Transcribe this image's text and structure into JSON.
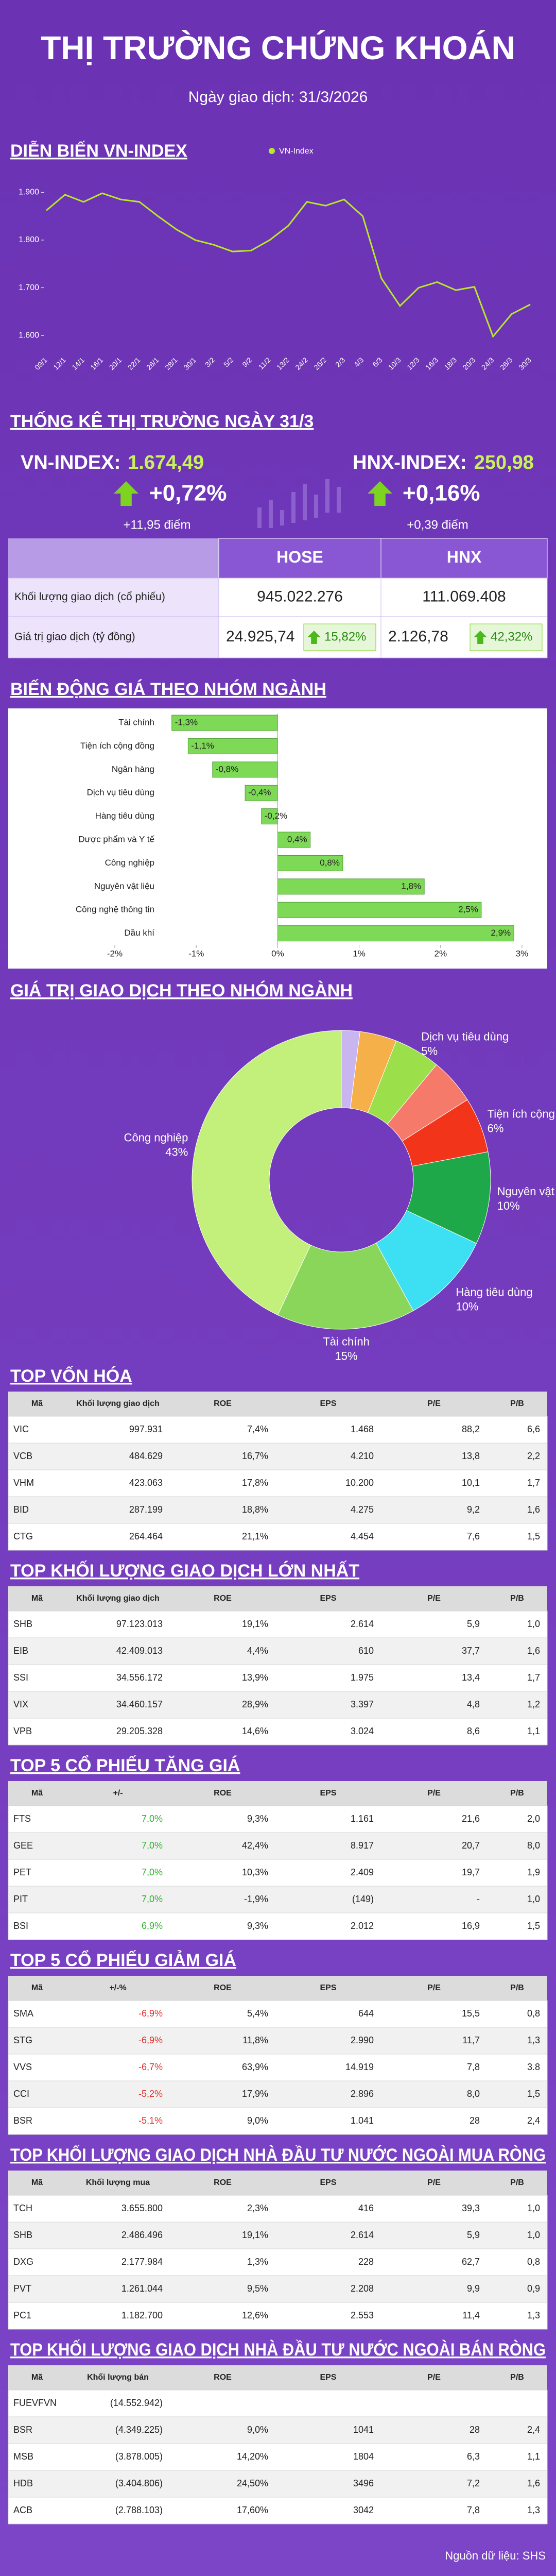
{
  "header": {
    "title": "THỊ TRƯỜNG CHỨNG KHOÁN",
    "subtitle": "Ngày giao dịch: 31/3/2026"
  },
  "chart_data": [
    {
      "type": "line",
      "title": "DIỄN BIẾN VN-INDEX",
      "categories": [
        "09/1",
        "12/1",
        "14/1",
        "16/1",
        "20/1",
        "22/1",
        "26/1",
        "28/1",
        "30/1",
        "3/2",
        "5/2",
        "9/2",
        "11/2",
        "13/2",
        "24/2",
        "26/2",
        "2/3",
        "4/3",
        "6/3",
        "10/3",
        "12/3",
        "16/3",
        "18/3",
        "20/3",
        "24/3",
        "26/3",
        "30/3"
      ],
      "series": [
        {
          "name": "VN-Index",
          "color": "#b8e82a",
          "values": [
            1862,
            1895,
            1880,
            1898,
            1885,
            1880,
            1850,
            1822,
            1800,
            1790,
            1776,
            1778,
            1800,
            1830,
            1880,
            1872,
            1885,
            1850,
            1720,
            1662,
            1700,
            1712,
            1695,
            1702,
            1598,
            1645,
            1665
          ]
        }
      ],
      "ylim": [
        1570,
        1950
      ],
      "yticks": [
        {
          "value": 1600,
          "label": "1.600"
        },
        {
          "value": 1700,
          "label": "1.700"
        },
        {
          "value": 1800,
          "label": "1.800"
        },
        {
          "value": 1900,
          "label": "1.900"
        }
      ],
      "legend": "top"
    },
    {
      "type": "bar",
      "orientation": "horizontal",
      "title": "BIẾN ĐỘNG GIÁ THEO NHÓM NGÀNH",
      "categories": [
        "Tài chính",
        "Tiện ích cộng đồng",
        "Ngân hàng",
        "Dịch vụ tiêu dùng",
        "Hàng tiêu dùng",
        "Dược phẩm và Y tế",
        "Công nghiệp",
        "Nguyên vật liệu",
        "Công nghệ thông tin",
        "Dầu khí"
      ],
      "values": [
        -1.3,
        -1.1,
        -0.8,
        -0.4,
        -0.2,
        0.4,
        0.8,
        1.8,
        2.5,
        2.9
      ],
      "value_labels": [
        "-1,3%",
        "-1,1%",
        "-0,8%",
        "-0,4%",
        "-0,2%",
        "0,4%",
        "0,8%",
        "1,8%",
        "2,5%",
        "2,9%"
      ],
      "color": "#7ed957",
      "xlim": [
        -2,
        3
      ],
      "xticks": [
        {
          "value": -2,
          "label": "-2%"
        },
        {
          "value": -1,
          "label": "-1%"
        },
        {
          "value": 0,
          "label": "0%"
        },
        {
          "value": 1,
          "label": "1%"
        },
        {
          "value": 2,
          "label": "2%"
        },
        {
          "value": 3,
          "label": "3%"
        }
      ]
    },
    {
      "type": "pie",
      "donut": true,
      "title": "GIÁ TRỊ GIAO DỊCH THEO NHÓM NGÀNH",
      "categories": [
        null,
        null,
        "Dịch vụ tiêu dùng",
        null,
        "Tiện ích cộng đồng",
        "Nguyên vật liệu",
        "Hàng tiêu dùng",
        "Tài chính",
        "Công nghiệp"
      ],
      "values": [
        2,
        4,
        5,
        5,
        6,
        10,
        10,
        15,
        43
      ],
      "value_labels": [
        null,
        null,
        "5%",
        null,
        "6%",
        "10%",
        "10%",
        "15%",
        "43%"
      ],
      "colors": [
        "#c9b6f0",
        "#f5b04a",
        "#9be04a",
        "#f57a6a",
        "#f2341a",
        "#1ea84a",
        "#3de0f2",
        "#8ad65a",
        "#c2f07a"
      ]
    }
  ],
  "market_stats": {
    "title": "THỐNG KÊ THỊ TRƯỜNG NGÀY 31/3",
    "indices": [
      {
        "label": "VN-INDEX:",
        "value": "1.674,49",
        "change_pct": "+0,72%",
        "change_pts": "+11,95 điểm"
      },
      {
        "label": "HNX-INDEX:",
        "value": "250,98",
        "change_pct": "+0,16%",
        "change_pts": "+0,39 điểm"
      }
    ],
    "table": {
      "columns": [
        "HOSE",
        "HNX"
      ],
      "rows": [
        {
          "label": "Khối lượng giao dịch (cổ phiếu)",
          "cells": [
            "945.022.276",
            "111.069.408"
          ]
        },
        {
          "label": "Giá trị giao dịch (tỷ đồng)",
          "cells": [
            "24.925,74",
            "2.126,78"
          ],
          "changes": [
            "15,82%",
            "42,32%"
          ]
        }
      ]
    }
  },
  "tables": [
    {
      "title": "TOP VỐN HÓA",
      "columns": [
        "Mã",
        "Khối lượng giao dịch",
        "ROE",
        "EPS",
        "P/E",
        "P/B"
      ],
      "rows": [
        [
          "VIC",
          "997.931",
          "7,4%",
          "1.468",
          "88,2",
          "6,6"
        ],
        [
          "VCB",
          "484.629",
          "16,7%",
          "4.210",
          "13,8",
          "2,2"
        ],
        [
          "VHM",
          "423.063",
          "17,8%",
          "10.200",
          "10,1",
          "1,7"
        ],
        [
          "BID",
          "287.199",
          "18,8%",
          "4.275",
          "9,2",
          "1,6"
        ],
        [
          "CTG",
          "264.464",
          "21,1%",
          "4.454",
          "7,6",
          "1,5"
        ]
      ]
    },
    {
      "title": "TOP KHỐI LƯỢNG GIAO DỊCH LỚN NHẤT",
      "columns": [
        "Mã",
        "Khối lượng giao dịch",
        "ROE",
        "EPS",
        "P/E",
        "P/B"
      ],
      "rows": [
        [
          "SHB",
          "97.123.013",
          "19,1%",
          "2.614",
          "5,9",
          "1,0"
        ],
        [
          "EIB",
          "42.409.013",
          "4,4%",
          "610",
          "37,7",
          "1,6"
        ],
        [
          "SSI",
          "34.556.172",
          "13,9%",
          "1.975",
          "13,4",
          "1,7"
        ],
        [
          "VIX",
          "34.460.157",
          "28,9%",
          "3.397",
          "4,8",
          "1,2"
        ],
        [
          "VPB",
          "29.205.328",
          "14,6%",
          "3.024",
          "8,6",
          "1,1"
        ]
      ]
    },
    {
      "title": "TOP 5 CỔ PHIẾU TĂNG GIÁ",
      "columns": [
        "Mã",
        "+/-",
        "ROE",
        "EPS",
        "P/E",
        "P/B"
      ],
      "highlight_column": 1,
      "highlight_color": "#2fae2f",
      "rows": [
        [
          "FTS",
          "7,0%",
          "9,3%",
          "1.161",
          "21,6",
          "2,0"
        ],
        [
          "GEE",
          "7,0%",
          "42,4%",
          "8.917",
          "20,7",
          "8,0"
        ],
        [
          "PET",
          "7,0%",
          "10,3%",
          "2.409",
          "19,7",
          "1,9"
        ],
        [
          "PIT",
          "7,0%",
          "-1,9%",
          "(149)",
          "-",
          "1,0"
        ],
        [
          "BSI",
          "6,9%",
          "9,3%",
          "2.012",
          "16,9",
          "1,5"
        ]
      ]
    },
    {
      "title": "TOP 5 CỔ PHIẾU GIẢM GIÁ",
      "columns": [
        "Mã",
        "+/-%",
        "ROE",
        "EPS",
        "P/E",
        "P/B"
      ],
      "highlight_column": 1,
      "highlight_color": "#e0302a",
      "rows": [
        [
          "SMA",
          "-6,9%",
          "5,4%",
          "644",
          "15,5",
          "0,8"
        ],
        [
          "STG",
          "-6,9%",
          "11,8%",
          "2.990",
          "11,7",
          "1,3"
        ],
        [
          "VVS",
          "-6,7%",
          "63,9%",
          "14.919",
          "7,8",
          "3.8"
        ],
        [
          "CCI",
          "-5,2%",
          "17,9%",
          "2.896",
          "8,0",
          "1,5"
        ],
        [
          "BSR",
          "-5,1%",
          "9,0%",
          "1.041",
          "28",
          "2,4"
        ]
      ]
    },
    {
      "title": "TOP KHỐI LƯỢNG GIAO DỊCH NHÀ ĐẦU TƯ NƯỚC NGOÀI MUA RÒNG",
      "columns": [
        "Mã",
        "Khối lượng mua",
        "ROE",
        "EPS",
        "P/E",
        "P/B"
      ],
      "rows": [
        [
          "TCH",
          "3.655.800",
          "2,3%",
          "416",
          "39,3",
          "1,0"
        ],
        [
          "SHB",
          "2.486.496",
          "19,1%",
          "2.614",
          "5,9",
          "1,0"
        ],
        [
          "DXG",
          "2.177.984",
          "1,3%",
          "228",
          "62,7",
          "0,8"
        ],
        [
          "PVT",
          "1.261.044",
          "9,5%",
          "2.208",
          "9,9",
          "0,9"
        ],
        [
          "PC1",
          "1.182.700",
          "12,6%",
          "2.553",
          "11,4",
          "1,3"
        ]
      ]
    },
    {
      "title": "TOP KHỐI LƯỢNG GIAO DỊCH NHÀ ĐẦU TƯ NƯỚC NGOÀI BÁN RÒNG",
      "columns": [
        "Mã",
        "Khối lượng bán",
        "ROE",
        "EPS",
        "P/E",
        "P/B"
      ],
      "rows": [
        [
          "FUEVFVN",
          "(14.552.942)",
          null,
          null,
          null,
          null
        ],
        [
          "BSR",
          "(4.349.225)",
          "9,0%",
          "1041",
          "28",
          "2,4"
        ],
        [
          "MSB",
          "(3.878.005)",
          "14,20%",
          "1804",
          "6,3",
          "1,1"
        ],
        [
          "HDB",
          "(3.404.806)",
          "24,50%",
          "3496",
          "7,2",
          "1,6"
        ],
        [
          "ACB",
          "(2.788.103)",
          "17,60%",
          "3042",
          "7,8",
          "1,3"
        ]
      ]
    }
  ],
  "source": "Nguồn dữ liệu: SHS"
}
